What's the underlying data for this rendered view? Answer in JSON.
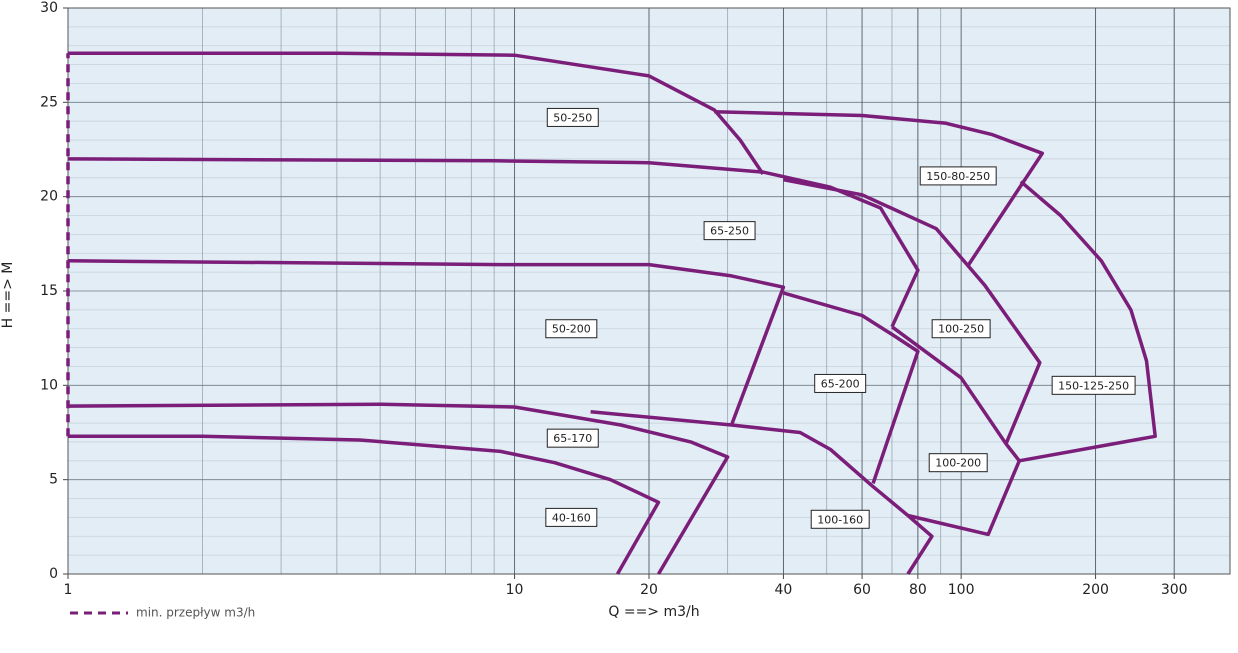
{
  "chart_data": {
    "type": "line",
    "x_label": "Q ==> m3/h",
    "y_label": "H ==> M",
    "log_x": true,
    "grid": true,
    "xlim": [
      1,
      400
    ],
    "ylim": [
      0,
      30
    ],
    "xticks": [
      1,
      10,
      20,
      40,
      60,
      80,
      100,
      200,
      300
    ],
    "yticks": [
      0,
      5,
      10,
      15,
      20,
      25,
      30
    ],
    "x_grid_minor": [
      2,
      3,
      4,
      5,
      6,
      7,
      8,
      9,
      20,
      30,
      40,
      50,
      60,
      70,
      80,
      90,
      200,
      300,
      400
    ],
    "y_grid_minor": [
      1,
      2,
      3,
      4,
      6,
      7,
      8,
      9,
      11,
      12,
      13,
      14,
      16,
      17,
      18,
      19,
      21,
      22,
      23,
      24,
      26,
      27,
      28,
      29
    ],
    "legend": "bottom-left",
    "series": [
      {
        "name": "min. przepływ m3/h",
        "color": "#7b1e7a",
        "dashed": true,
        "x": [
          1,
          1
        ],
        "values": [
          7.3,
          27.6
        ]
      },
      {
        "name": "50-250",
        "color": "#7b1e7a",
        "x": [
          1,
          4,
          10,
          20,
          28,
          32,
          36
        ],
        "values": [
          27.6,
          27.6,
          27.5,
          26.4,
          24.6,
          23.0,
          21.2
        ]
      },
      {
        "name": "150-80-250",
        "color": "#7b1e7a",
        "x": [
          28,
          60,
          92,
          117,
          152,
          104
        ],
        "values": [
          24.5,
          24.3,
          23.9,
          23.3,
          22.3,
          16.4
        ]
      },
      {
        "name": "65-250",
        "color": "#7b1e7a",
        "x": [
          1,
          9,
          20,
          36,
          51,
          66,
          80,
          70
        ],
        "values": [
          22.0,
          21.9,
          21.8,
          21.3,
          20.5,
          19.4,
          16.1,
          13.1
        ]
      },
      {
        "name": "100-250",
        "color": "#7b1e7a",
        "x": [
          40,
          60,
          88,
          113,
          150,
          126
        ],
        "values": [
          20.9,
          20.1,
          18.3,
          15.3,
          11.2,
          6.9
        ]
      },
      {
        "name": "150-125-250",
        "color": "#7b1e7a",
        "x": [
          136,
          167,
          206,
          240,
          260,
          272,
          135,
          115,
          76
        ],
        "values": [
          20.8,
          19.0,
          16.6,
          14.0,
          11.3,
          7.3,
          6.0,
          2.1,
          3.1
        ]
      },
      {
        "name": "50-200",
        "color": "#7b1e7a",
        "x": [
          1,
          9.3,
          20,
          30.6,
          40,
          30.6
        ],
        "values": [
          16.6,
          16.4,
          16.4,
          15.8,
          15.2,
          7.9
        ]
      },
      {
        "name": "65-200",
        "color": "#7b1e7a",
        "x": [
          40,
          60,
          70,
          80,
          63.5
        ],
        "values": [
          14.9,
          13.7,
          12.7,
          11.8,
          4.8
        ]
      },
      {
        "name": "100-200",
        "color": "#7b1e7a",
        "x": [
          70,
          100,
          126,
          135
        ],
        "values": [
          13.1,
          10.4,
          6.9,
          6.0
        ]
      },
      {
        "name": "65-170",
        "color": "#7b1e7a",
        "x": [
          1,
          5,
          10,
          17.3,
          24.8,
          30,
          21
        ],
        "values": [
          8.9,
          9.0,
          8.85,
          7.9,
          7.0,
          6.2,
          0
        ]
      },
      {
        "name": "100-160",
        "color": "#7b1e7a",
        "x": [
          14.8,
          30.6,
          43.6,
          51,
          63,
          76,
          86,
          76
        ],
        "values": [
          8.6,
          7.9,
          7.5,
          6.6,
          4.7,
          3.1,
          2.0,
          0
        ]
      },
      {
        "name": "40-160",
        "color": "#7b1e7a",
        "x": [
          1,
          2,
          4.5,
          9.3,
          12.3,
          16.4,
          21,
          17
        ],
        "values": [
          7.3,
          7.3,
          7.1,
          6.5,
          5.9,
          5.0,
          3.8,
          0
        ]
      }
    ]
  }
}
